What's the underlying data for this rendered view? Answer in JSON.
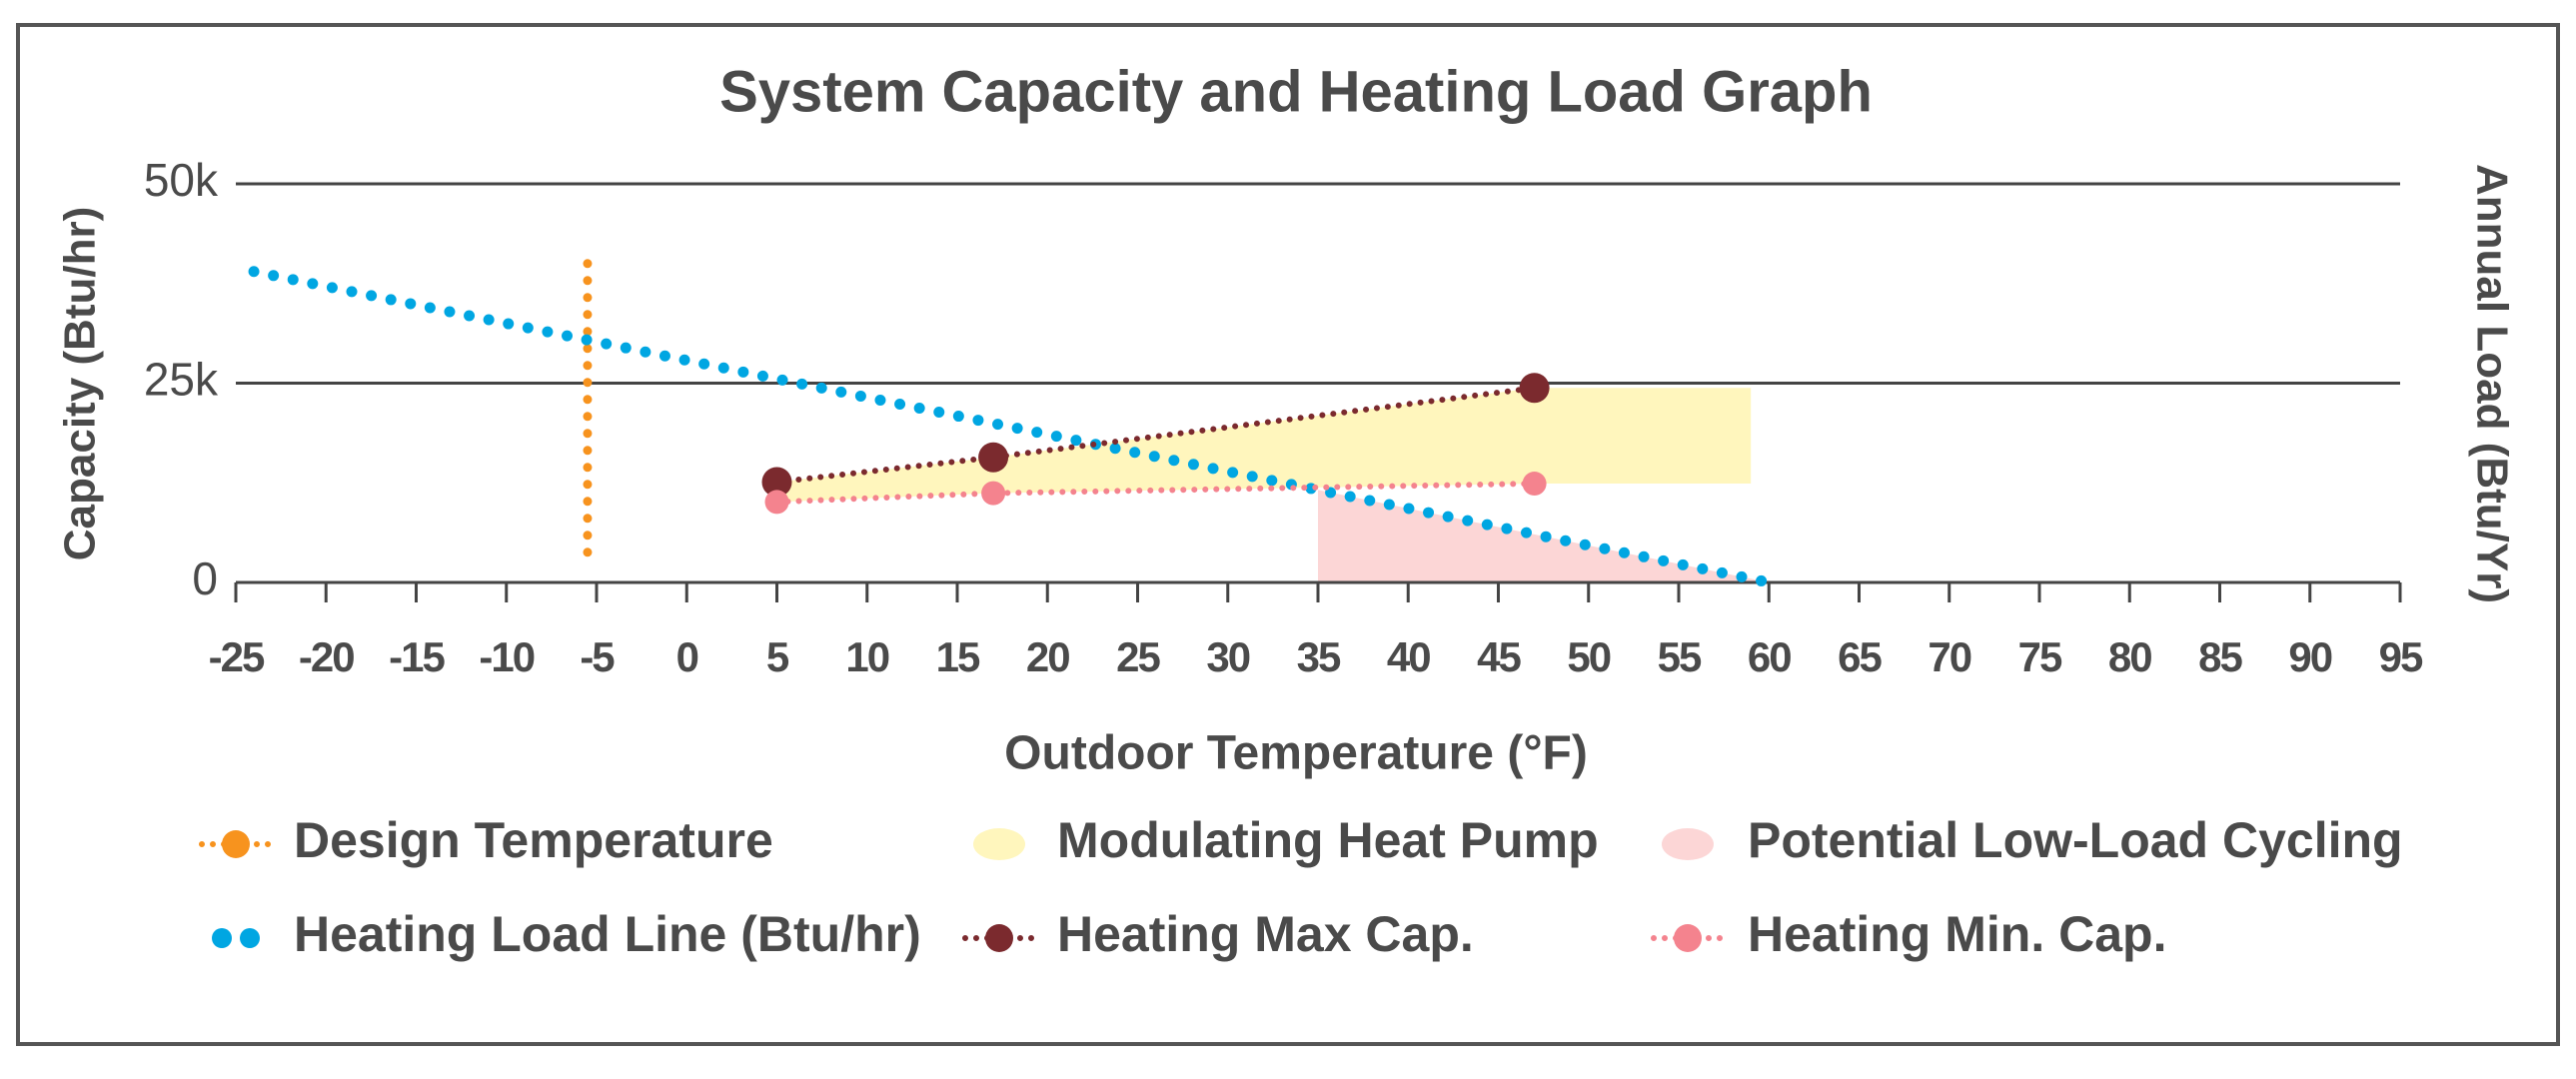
{
  "chart_data": {
    "type": "line",
    "title": "System Capacity and Heating Load Graph",
    "x_label": "Outdoor Temperature (°F)",
    "y_label": "Capacity (Btu/hr)",
    "y2_label": "Annual Load (Btu/Yr)",
    "xlim": [
      -25,
      95
    ],
    "xticks": [
      -25,
      -20,
      -15,
      -10,
      -5,
      0,
      5,
      10,
      15,
      20,
      25,
      30,
      35,
      40,
      45,
      50,
      55,
      60,
      65,
      70,
      75,
      80,
      85,
      90,
      95
    ],
    "ylim": [
      0,
      50000
    ],
    "yticks": [
      0,
      {
        "value": 25000,
        "label": "25k"
      },
      {
        "value": 50000,
        "label": "50k"
      }
    ],
    "grid": true,
    "legend": "bottom",
    "series": [
      {
        "name": "Design Temperature",
        "kind": "vline",
        "color": "#f7931e",
        "x": [
          -5.5,
          -5.5
        ],
        "values": [
          40000,
          2000
        ]
      },
      {
        "name": "Modulating Heat Pump",
        "kind": "area",
        "color": "#fff6bd",
        "x": [
          5,
          17,
          47,
          59
        ],
        "values": [
          12600,
          15700,
          24400,
          24400
        ],
        "base": [
          10100,
          11200,
          12400,
          12400
        ]
      },
      {
        "name": "Potential Low-Load Cycling",
        "kind": "area",
        "color": "#fcd6d6",
        "x": [
          35,
          60
        ],
        "values": [
          11600,
          0
        ]
      },
      {
        "name": "Heating Load Line (Btu/hr)",
        "kind": "dots",
        "color": "#00a6e2",
        "x": [
          -24,
          60
        ],
        "values": [
          39000,
          0
        ]
      },
      {
        "name": "Heating Max Cap.",
        "kind": "markers",
        "color": "#7b2a2e",
        "x": [
          5,
          17,
          47
        ],
        "values": [
          12600,
          15700,
          24400
        ]
      },
      {
        "name": "Heating Min. Cap.",
        "kind": "markers",
        "color": "#f4838e",
        "x": [
          5,
          17,
          47
        ],
        "values": [
          10100,
          11200,
          12400
        ]
      }
    ]
  }
}
